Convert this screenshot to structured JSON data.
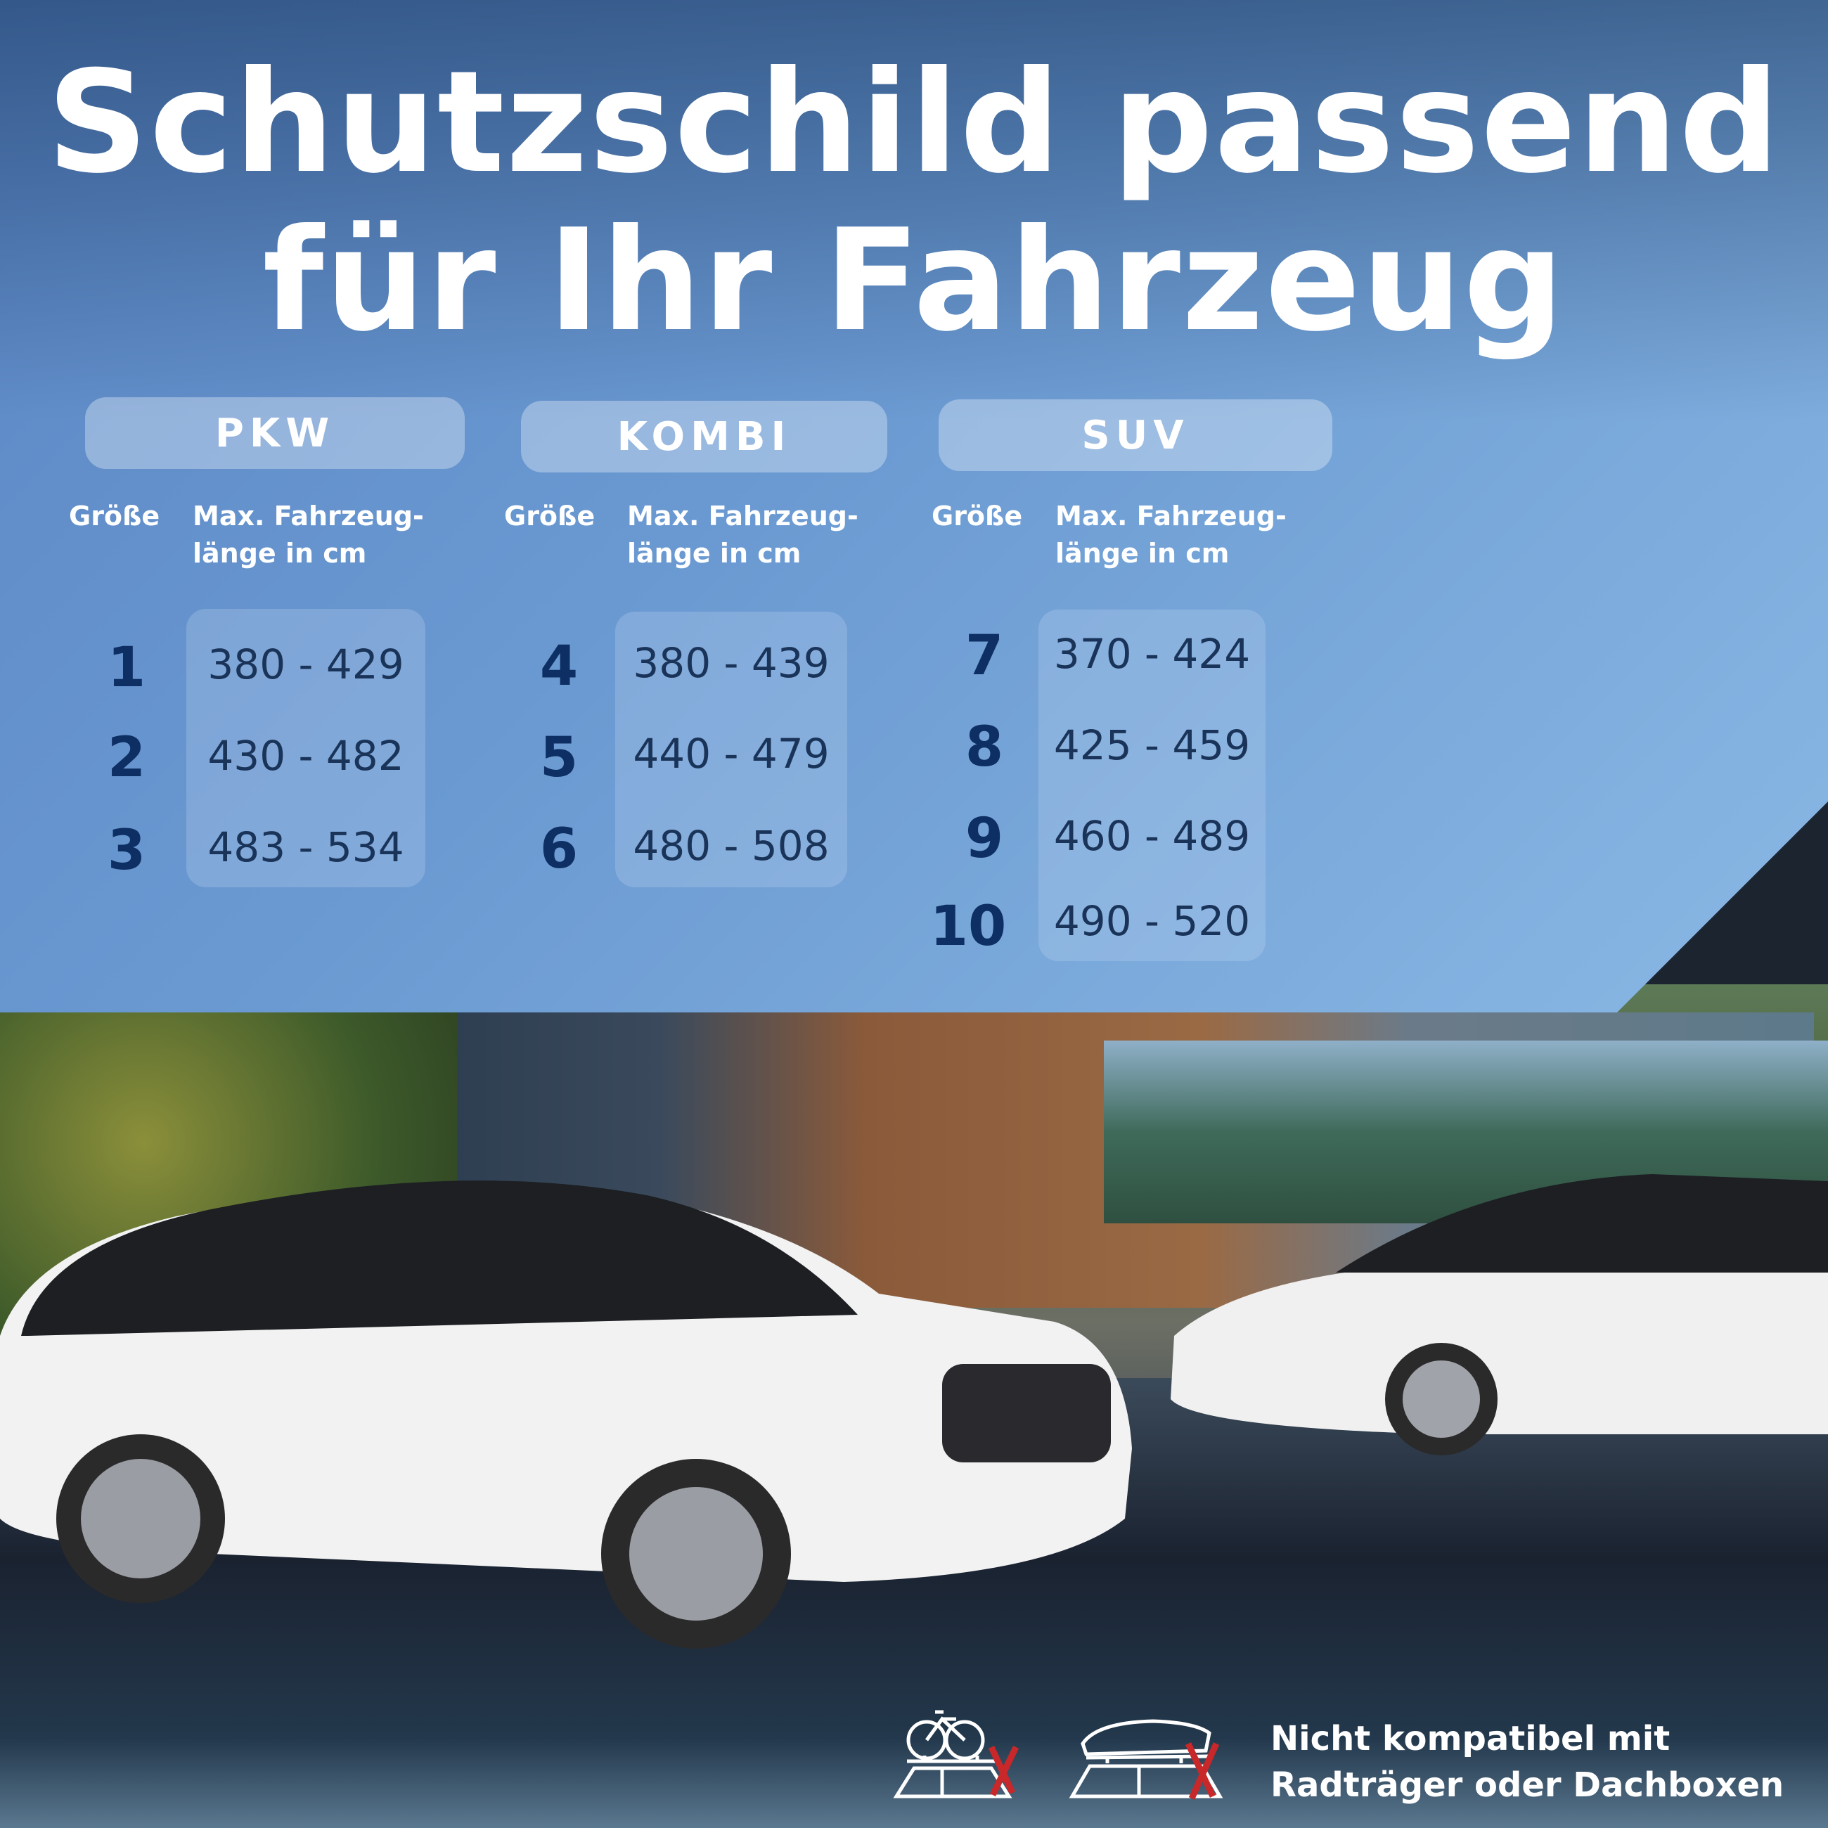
{
  "title": {
    "line1": "Schutzschild passend",
    "line2": "für Ihr Fahrzeug"
  },
  "colors": {
    "panel": "#6b9ad2",
    "number": "#0e2f63",
    "cross": "#c8282a"
  },
  "groups": [
    {
      "label": "PKW",
      "col_size": "Größe",
      "col_len1": "Max. Fahrzeug-",
      "col_len2": "länge in cm",
      "rows": [
        {
          "size": "1",
          "range": "380 - 429"
        },
        {
          "size": "2",
          "range": "430 - 482"
        },
        {
          "size": "3",
          "range": "483 - 534"
        }
      ]
    },
    {
      "label": "KOMBI",
      "col_size": "Größe",
      "col_len1": "Max. Fahrzeug-",
      "col_len2": "länge in cm",
      "rows": [
        {
          "size": "4",
          "range": "380 - 439"
        },
        {
          "size": "5",
          "range": "440 - 479"
        },
        {
          "size": "6",
          "range": "480 - 508"
        }
      ]
    },
    {
      "label": "SUV",
      "col_size": "Größe",
      "col_len1": "Max. Fahrzeug-",
      "col_len2": "länge in cm",
      "rows": [
        {
          "size": "7",
          "range": "370 - 424"
        },
        {
          "size": "8",
          "range": "425 - 459"
        },
        {
          "size": "9",
          "range": "460 - 489"
        },
        {
          "size": "10",
          "range": "490 - 520"
        }
      ]
    }
  ],
  "note": {
    "line1": "Nicht kompatibel mit",
    "line2": "Radträger oder Dachboxen",
    "icons": [
      "bike-rack-icon",
      "roof-box-icon"
    ]
  }
}
